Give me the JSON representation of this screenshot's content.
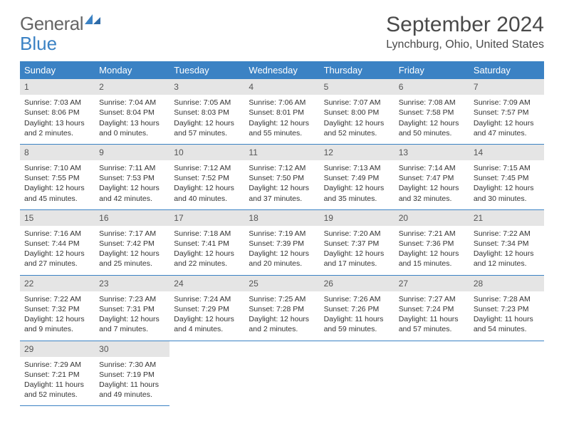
{
  "brand": {
    "part1": "General",
    "part2": "Blue"
  },
  "title": "September 2024",
  "location": "Lynchburg, Ohio, United States",
  "colors": {
    "header_bg": "#3b82c4",
    "header_text": "#ffffff",
    "daynum_bg": "#e5e5e5",
    "text": "#333333",
    "rule": "#3b82c4"
  },
  "weekdays": [
    "Sunday",
    "Monday",
    "Tuesday",
    "Wednesday",
    "Thursday",
    "Friday",
    "Saturday"
  ],
  "weeks": [
    [
      {
        "n": "1",
        "sunrise": "Sunrise: 7:03 AM",
        "sunset": "Sunset: 8:06 PM",
        "daylight": "Daylight: 13 hours and 2 minutes."
      },
      {
        "n": "2",
        "sunrise": "Sunrise: 7:04 AM",
        "sunset": "Sunset: 8:04 PM",
        "daylight": "Daylight: 13 hours and 0 minutes."
      },
      {
        "n": "3",
        "sunrise": "Sunrise: 7:05 AM",
        "sunset": "Sunset: 8:03 PM",
        "daylight": "Daylight: 12 hours and 57 minutes."
      },
      {
        "n": "4",
        "sunrise": "Sunrise: 7:06 AM",
        "sunset": "Sunset: 8:01 PM",
        "daylight": "Daylight: 12 hours and 55 minutes."
      },
      {
        "n": "5",
        "sunrise": "Sunrise: 7:07 AM",
        "sunset": "Sunset: 8:00 PM",
        "daylight": "Daylight: 12 hours and 52 minutes."
      },
      {
        "n": "6",
        "sunrise": "Sunrise: 7:08 AM",
        "sunset": "Sunset: 7:58 PM",
        "daylight": "Daylight: 12 hours and 50 minutes."
      },
      {
        "n": "7",
        "sunrise": "Sunrise: 7:09 AM",
        "sunset": "Sunset: 7:57 PM",
        "daylight": "Daylight: 12 hours and 47 minutes."
      }
    ],
    [
      {
        "n": "8",
        "sunrise": "Sunrise: 7:10 AM",
        "sunset": "Sunset: 7:55 PM",
        "daylight": "Daylight: 12 hours and 45 minutes."
      },
      {
        "n": "9",
        "sunrise": "Sunrise: 7:11 AM",
        "sunset": "Sunset: 7:53 PM",
        "daylight": "Daylight: 12 hours and 42 minutes."
      },
      {
        "n": "10",
        "sunrise": "Sunrise: 7:12 AM",
        "sunset": "Sunset: 7:52 PM",
        "daylight": "Daylight: 12 hours and 40 minutes."
      },
      {
        "n": "11",
        "sunrise": "Sunrise: 7:12 AM",
        "sunset": "Sunset: 7:50 PM",
        "daylight": "Daylight: 12 hours and 37 minutes."
      },
      {
        "n": "12",
        "sunrise": "Sunrise: 7:13 AM",
        "sunset": "Sunset: 7:49 PM",
        "daylight": "Daylight: 12 hours and 35 minutes."
      },
      {
        "n": "13",
        "sunrise": "Sunrise: 7:14 AM",
        "sunset": "Sunset: 7:47 PM",
        "daylight": "Daylight: 12 hours and 32 minutes."
      },
      {
        "n": "14",
        "sunrise": "Sunrise: 7:15 AM",
        "sunset": "Sunset: 7:45 PM",
        "daylight": "Daylight: 12 hours and 30 minutes."
      }
    ],
    [
      {
        "n": "15",
        "sunrise": "Sunrise: 7:16 AM",
        "sunset": "Sunset: 7:44 PM",
        "daylight": "Daylight: 12 hours and 27 minutes."
      },
      {
        "n": "16",
        "sunrise": "Sunrise: 7:17 AM",
        "sunset": "Sunset: 7:42 PM",
        "daylight": "Daylight: 12 hours and 25 minutes."
      },
      {
        "n": "17",
        "sunrise": "Sunrise: 7:18 AM",
        "sunset": "Sunset: 7:41 PM",
        "daylight": "Daylight: 12 hours and 22 minutes."
      },
      {
        "n": "18",
        "sunrise": "Sunrise: 7:19 AM",
        "sunset": "Sunset: 7:39 PM",
        "daylight": "Daylight: 12 hours and 20 minutes."
      },
      {
        "n": "19",
        "sunrise": "Sunrise: 7:20 AM",
        "sunset": "Sunset: 7:37 PM",
        "daylight": "Daylight: 12 hours and 17 minutes."
      },
      {
        "n": "20",
        "sunrise": "Sunrise: 7:21 AM",
        "sunset": "Sunset: 7:36 PM",
        "daylight": "Daylight: 12 hours and 15 minutes."
      },
      {
        "n": "21",
        "sunrise": "Sunrise: 7:22 AM",
        "sunset": "Sunset: 7:34 PM",
        "daylight": "Daylight: 12 hours and 12 minutes."
      }
    ],
    [
      {
        "n": "22",
        "sunrise": "Sunrise: 7:22 AM",
        "sunset": "Sunset: 7:32 PM",
        "daylight": "Daylight: 12 hours and 9 minutes."
      },
      {
        "n": "23",
        "sunrise": "Sunrise: 7:23 AM",
        "sunset": "Sunset: 7:31 PM",
        "daylight": "Daylight: 12 hours and 7 minutes."
      },
      {
        "n": "24",
        "sunrise": "Sunrise: 7:24 AM",
        "sunset": "Sunset: 7:29 PM",
        "daylight": "Daylight: 12 hours and 4 minutes."
      },
      {
        "n": "25",
        "sunrise": "Sunrise: 7:25 AM",
        "sunset": "Sunset: 7:28 PM",
        "daylight": "Daylight: 12 hours and 2 minutes."
      },
      {
        "n": "26",
        "sunrise": "Sunrise: 7:26 AM",
        "sunset": "Sunset: 7:26 PM",
        "daylight": "Daylight: 11 hours and 59 minutes."
      },
      {
        "n": "27",
        "sunrise": "Sunrise: 7:27 AM",
        "sunset": "Sunset: 7:24 PM",
        "daylight": "Daylight: 11 hours and 57 minutes."
      },
      {
        "n": "28",
        "sunrise": "Sunrise: 7:28 AM",
        "sunset": "Sunset: 7:23 PM",
        "daylight": "Daylight: 11 hours and 54 minutes."
      }
    ],
    [
      {
        "n": "29",
        "sunrise": "Sunrise: 7:29 AM",
        "sunset": "Sunset: 7:21 PM",
        "daylight": "Daylight: 11 hours and 52 minutes."
      },
      {
        "n": "30",
        "sunrise": "Sunrise: 7:30 AM",
        "sunset": "Sunset: 7:19 PM",
        "daylight": "Daylight: 11 hours and 49 minutes."
      },
      null,
      null,
      null,
      null,
      null
    ]
  ]
}
